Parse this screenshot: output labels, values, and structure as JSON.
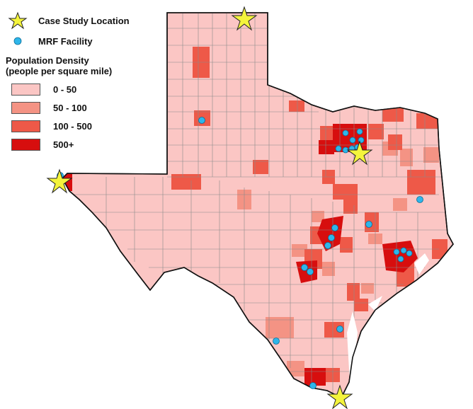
{
  "legend": {
    "case_study_label": "Case Study Location",
    "mrf_label": "MRF Facility",
    "density_title_line1": "Population Density",
    "density_title_line2": "(people per square mile)",
    "classes": [
      {
        "label": "0 - 50",
        "color": "#fbc6c4"
      },
      {
        "label": "50 - 100",
        "color": "#f49384"
      },
      {
        "label": "100 - 500",
        "color": "#ee5948"
      },
      {
        "label": "500+",
        "color": "#d70e0e"
      }
    ]
  },
  "colors": {
    "state_fill": "#fbc6c4",
    "border": "#555555",
    "star": "#f4f43c",
    "mrf_dot": "#2eb6ea",
    "water": "#ffffff"
  },
  "map": {
    "state": "Texas",
    "case_study_locations": [
      "Panhandle (north)",
      "El Paso (west)",
      "Dallas–Fort Worth",
      "Brownsville (south)"
    ],
    "mrf_facility_count": 22
  }
}
